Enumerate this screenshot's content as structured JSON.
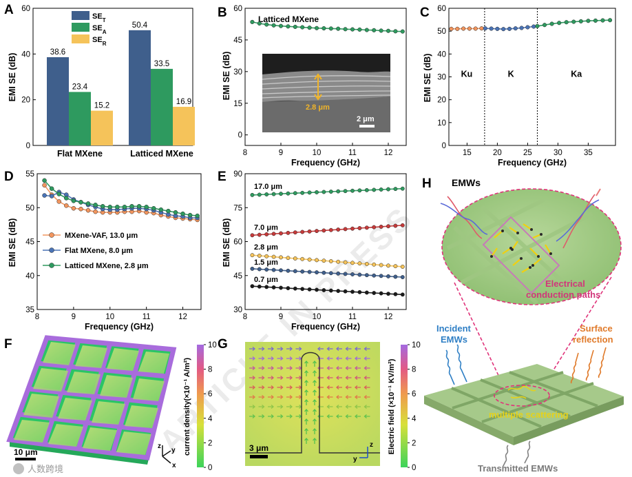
{
  "watermark": "ARTICLE IN PRESS",
  "logo_text": "人数跨境",
  "panels": {
    "A": {
      "label": "A"
    },
    "B": {
      "label": "B",
      "sem_scale": "2 μm",
      "sem_thickness": "2.8 μm"
    },
    "C": {
      "label": "C"
    },
    "D": {
      "label": "D"
    },
    "E": {
      "label": "E"
    },
    "F": {
      "label": "F",
      "scale": "10 μm",
      "axes": {
        "z": "z",
        "y": "y",
        "x": "x"
      }
    },
    "G": {
      "label": "G",
      "scale": "3 μm",
      "axes": {
        "z": "z",
        "y": "y"
      }
    },
    "H": {
      "label": "H",
      "emws": "EMWs",
      "conduction_line1": "Electrical",
      "conduction_line2": "conduction paths",
      "incident_line1": "Incident",
      "incident_line2": "EMWs",
      "surface_line1": "Surface",
      "surface_line2": "reflection",
      "scattering": "multiple scattering",
      "transmitted": "Transmitted EMWs"
    }
  },
  "chart_data": [
    {
      "panel": "A",
      "type": "bar",
      "categories": [
        "Flat MXene",
        "Latticed MXene"
      ],
      "series": [
        {
          "name": "SE_T",
          "label_main": "SE",
          "label_sub": "T",
          "values": [
            38.6,
            50.4
          ],
          "color": "#3f5f8c"
        },
        {
          "name": "SE_A",
          "label_main": "SE",
          "label_sub": "A",
          "values": [
            23.4,
            33.5
          ],
          "color": "#2e9a5f"
        },
        {
          "name": "SE_R",
          "label_main": "SE",
          "label_sub": "R",
          "values": [
            15.2,
            16.9
          ],
          "color": "#f5c35a"
        }
      ],
      "value_labels": [
        "38.6",
        "23.4",
        "15.2",
        "50.4",
        "33.5",
        "16.9"
      ],
      "ylabel": "EMI SE (dB)",
      "ylim": [
        0,
        60
      ],
      "yticks": [
        0,
        20,
        40,
        60
      ],
      "legend": "top-left"
    },
    {
      "panel": "B",
      "type": "line",
      "title": "Latticed MXene",
      "xlabel": "Frequency (GHz)",
      "ylabel": "EMI SE (dB)",
      "xlim": [
        8,
        12.5
      ],
      "ylim": [
        -5,
        60
      ],
      "xticks": [
        8,
        9,
        10,
        11,
        12
      ],
      "yticks": [
        0,
        15,
        30,
        45,
        60
      ],
      "x": [
        8.2,
        8.4,
        8.6,
        8.8,
        9.0,
        9.2,
        9.4,
        9.6,
        9.8,
        10.0,
        10.2,
        10.4,
        10.6,
        10.8,
        11.0,
        11.2,
        11.4,
        11.6,
        11.8,
        12.0,
        12.2,
        12.4
      ],
      "y": [
        53.5,
        52.8,
        52.3,
        51.9,
        51.6,
        51.4,
        51.2,
        51.0,
        50.8,
        50.6,
        50.5,
        50.4,
        50.3,
        50.1,
        50.0,
        49.9,
        49.7,
        49.6,
        49.4,
        49.3,
        49.1,
        49.0
      ]
    },
    {
      "panel": "C",
      "type": "line",
      "xlabel": "Frequency (GHz)",
      "ylabel": "EMI SE (dB)",
      "xlim": [
        12,
        39.5
      ],
      "ylim": [
        0,
        60
      ],
      "xticks": [
        15,
        20,
        25,
        30,
        35
      ],
      "yticks": [
        0,
        10,
        20,
        30,
        40,
        50,
        60
      ],
      "band_labels": [
        "Ku",
        "K",
        "Ka"
      ],
      "band_edges": [
        17.9,
        26.6
      ],
      "series": [
        {
          "name": "Ku",
          "color": "#f2955e",
          "x": [
            12.4,
            13.4,
            14.4,
            15.4,
            16.4,
            17.4
          ],
          "y": [
            51.0,
            51.0,
            51.1,
            51.1,
            51.1,
            51.2
          ]
        },
        {
          "name": "K",
          "color": "#4a73b5",
          "x": [
            18.0,
            19.0,
            20.0,
            21.0,
            22.0,
            23.0,
            24.0,
            25.0,
            26.0
          ],
          "y": [
            51.2,
            51.1,
            51.0,
            50.9,
            51.0,
            51.2,
            51.4,
            51.7,
            52.0
          ]
        },
        {
          "name": "Ka",
          "color": "#2e9a5f",
          "x": [
            26.6,
            27.8,
            29.0,
            30.2,
            31.4,
            32.6,
            33.8,
            35.0,
            36.2,
            37.4,
            38.6
          ],
          "y": [
            52.2,
            52.7,
            53.2,
            53.6,
            53.9,
            54.1,
            54.3,
            54.5,
            54.6,
            54.7,
            54.8
          ]
        }
      ]
    },
    {
      "panel": "D",
      "type": "line",
      "xlabel": "Frequency (GHz)",
      "ylabel": "EMI SE (dB)",
      "xlim": [
        8,
        12.5
      ],
      "ylim": [
        35,
        55
      ],
      "xticks": [
        8,
        9,
        10,
        11,
        12
      ],
      "yticks": [
        35,
        40,
        45,
        50,
        55
      ],
      "legend": "bottom-left",
      "series": [
        {
          "name": "MXene-VAF, 13.0 μm",
          "color": "#f2955e",
          "x": [
            8.2,
            8.4,
            8.6,
            8.8,
            9.0,
            9.2,
            9.4,
            9.6,
            9.8,
            10.0,
            10.2,
            10.4,
            10.6,
            10.8,
            11.0,
            11.2,
            11.4,
            11.6,
            11.8,
            12.0,
            12.2,
            12.4
          ],
          "y": [
            53.3,
            51.9,
            50.9,
            50.3,
            49.9,
            49.8,
            49.6,
            49.4,
            49.3,
            49.3,
            49.3,
            49.4,
            49.4,
            49.5,
            49.3,
            49.2,
            48.9,
            48.7,
            48.5,
            48.4,
            48.3,
            48.2
          ]
        },
        {
          "name": "Flat MXene, 8.0 μm",
          "color": "#4a73b5",
          "x": [
            8.2,
            8.4,
            8.6,
            8.8,
            9.0,
            9.2,
            9.4,
            9.6,
            9.8,
            10.0,
            10.2,
            10.4,
            10.6,
            10.8,
            11.0,
            11.2,
            11.4,
            11.6,
            11.8,
            12.0,
            12.2,
            12.4
          ],
          "y": [
            51.8,
            51.7,
            52.3,
            51.9,
            51.2,
            50.8,
            50.4,
            50.1,
            49.8,
            49.7,
            49.7,
            49.8,
            49.9,
            49.9,
            49.8,
            49.6,
            49.3,
            49.0,
            48.8,
            48.7,
            48.5,
            48.5
          ]
        },
        {
          "name": "Latticed MXene, 2.8 μm",
          "color": "#2e9a5f",
          "x": [
            8.2,
            8.4,
            8.6,
            8.8,
            9.0,
            9.2,
            9.4,
            9.6,
            9.8,
            10.0,
            10.2,
            10.4,
            10.6,
            10.8,
            11.0,
            11.2,
            11.4,
            11.6,
            11.8,
            12.0,
            12.2,
            12.4
          ],
          "y": [
            54.0,
            52.8,
            52.0,
            51.4,
            51.0,
            50.8,
            50.6,
            50.4,
            50.2,
            50.1,
            50.1,
            50.1,
            50.2,
            50.2,
            50.1,
            49.9,
            49.7,
            49.5,
            49.3,
            49.1,
            48.9,
            48.8
          ]
        }
      ]
    },
    {
      "panel": "E",
      "type": "line",
      "xlabel": "Frequency (GHz)",
      "ylabel": "EMI SE (dB)",
      "xlim": [
        8,
        12.5
      ],
      "ylim": [
        30,
        90
      ],
      "xticks": [
        8,
        9,
        10,
        11,
        12
      ],
      "yticks": [
        30,
        45,
        60,
        75,
        90
      ],
      "series": [
        {
          "name": "17.0 μm",
          "color": "#2e9a5f",
          "y_start": 80.6,
          "y_end": 83.4
        },
        {
          "name": "7.0 μm",
          "color": "#c73a3a",
          "y_start": 62.8,
          "y_end": 67.2
        },
        {
          "name": "2.8 μm",
          "color": "#f5c35a",
          "y_start": 54.0,
          "y_end": 48.9
        },
        {
          "name": "1.5 μm",
          "color": "#3f5f8c",
          "y_start": 48.0,
          "y_end": 44.3
        },
        {
          "name": "0.7 μm",
          "color": "#1a1a1a",
          "y_start": 40.3,
          "y_end": 36.6
        }
      ]
    },
    {
      "panel": "F",
      "type": "heatmap",
      "colorbar_label": "current density(×10⁻¹ A/m²)",
      "colorbar_ticks": [
        "0",
        "2",
        "4",
        "6",
        "8",
        "10"
      ],
      "colorbar_range": [
        0,
        10
      ]
    },
    {
      "panel": "G",
      "type": "heatmap",
      "colorbar_label": "Electric field (×10⁻¹ KV/m²)",
      "colorbar_ticks": [
        "0",
        "2",
        "4",
        "6",
        "8",
        "10"
      ],
      "colorbar_range": [
        0,
        10
      ]
    }
  ]
}
